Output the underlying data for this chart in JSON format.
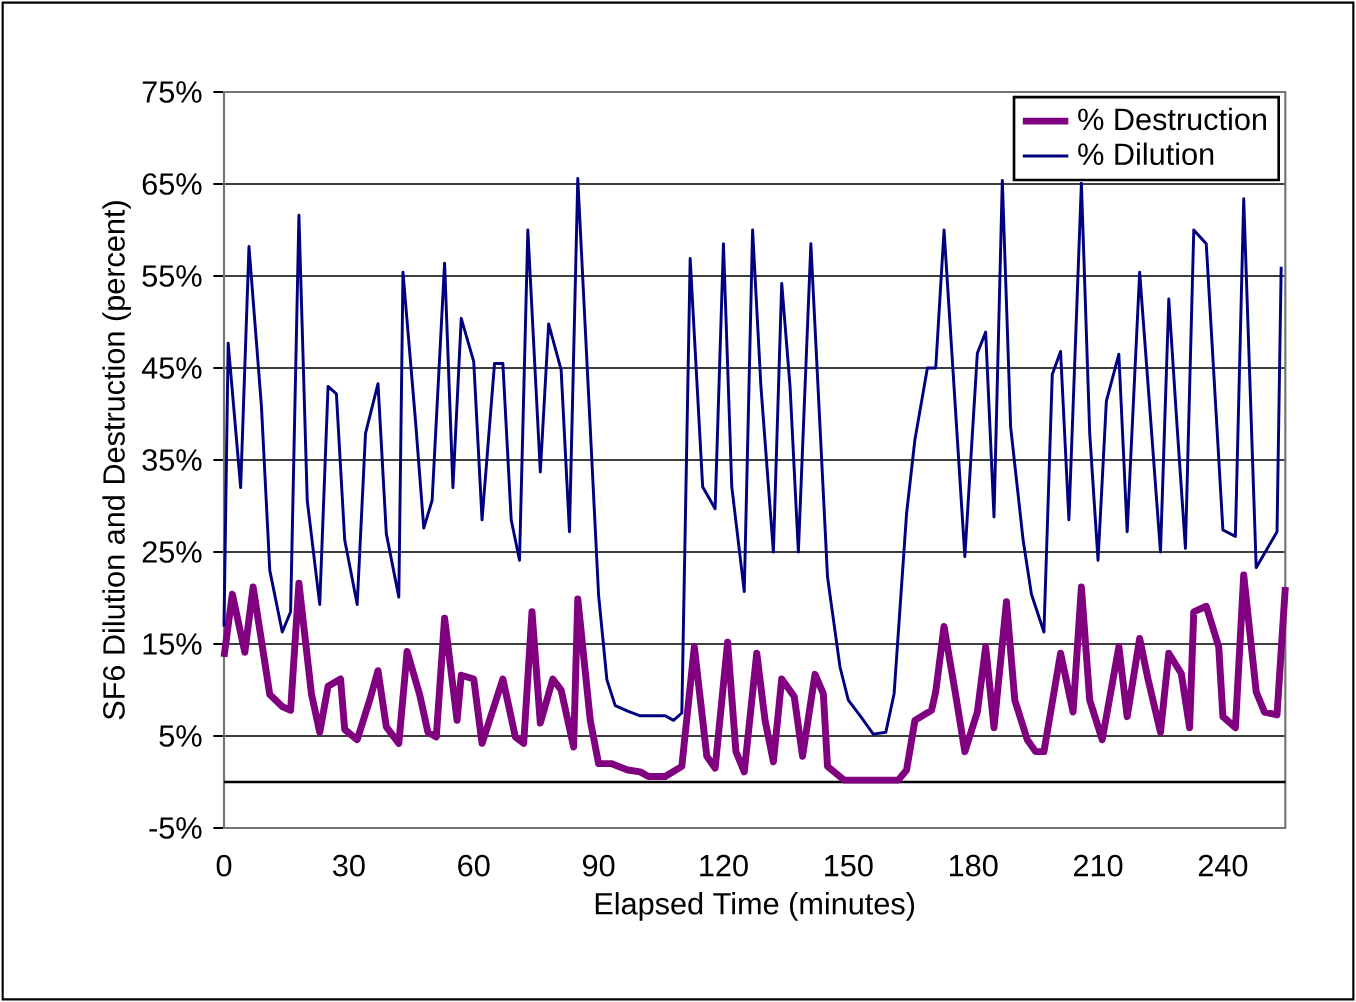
{
  "chart_data": {
    "type": "line",
    "xlabel": "Elapsed Time (minutes)",
    "ylabel": "SF6 Dilution and Destruction (percent)",
    "xlim": [
      0,
      255
    ],
    "xticks": [
      0,
      30,
      60,
      90,
      120,
      150,
      180,
      210,
      240
    ],
    "ylim": [
      -5,
      75
    ],
    "yticks": [
      {
        "value": -5,
        "label": "-5%"
      },
      {
        "value": 5,
        "label": "5%"
      },
      {
        "value": 15,
        "label": "15%"
      },
      {
        "value": 25,
        "label": "25%"
      },
      {
        "value": 35,
        "label": "35%"
      },
      {
        "value": 45,
        "label": "45%"
      },
      {
        "value": 55,
        "label": "55%"
      },
      {
        "value": 65,
        "label": "65%"
      },
      {
        "value": 75,
        "label": "75%"
      }
    ],
    "grid": "y",
    "legend": "top right",
    "marker": "none",
    "line_style": "solid",
    "series": [
      {
        "name": "% Destruction",
        "color": "#800080",
        "x": [
          0,
          2,
          5,
          7,
          11,
          14,
          16,
          18,
          21,
          23,
          25,
          28,
          29,
          32,
          35,
          37,
          39,
          42,
          44,
          47,
          49,
          51,
          53,
          56,
          57,
          60,
          62,
          67,
          70,
          72,
          74,
          76,
          79,
          81,
          84,
          85,
          88,
          90,
          93,
          97,
          100,
          102,
          106,
          110,
          113,
          116,
          118,
          121,
          123,
          125,
          128,
          130,
          132,
          134,
          137,
          139,
          142,
          144,
          145,
          149,
          154,
          162,
          164,
          166,
          170,
          171,
          173,
          176,
          178,
          181,
          183,
          185,
          188,
          190,
          193,
          195,
          197,
          201,
          204,
          206,
          208,
          211,
          215,
          217,
          220,
          222,
          225,
          227,
          230,
          232,
          233,
          236,
          239,
          240,
          243,
          245,
          248,
          250,
          253,
          255
        ],
        "values": [
          13.6,
          20.4,
          14.1,
          21.2,
          9.5,
          8.2,
          7.8,
          21.6,
          9.6,
          5.4,
          10.4,
          11.2,
          5.7,
          4.6,
          8.9,
          12.1,
          6,
          4.2,
          14.2,
          9.5,
          5.4,
          4.9,
          17.8,
          6.7,
          11.6,
          11.2,
          4.2,
          11.2,
          4.9,
          4.2,
          18.5,
          6.4,
          11.2,
          10,
          3.8,
          19.9,
          6.7,
          2,
          2,
          1.3,
          1.1,
          0.6,
          0.6,
          1.7,
          14.7,
          2.8,
          1.5,
          15.2,
          3.3,
          1.1,
          14,
          6.7,
          2.2,
          11.2,
          9.3,
          2.8,
          11.7,
          9.6,
          1.7,
          0.2,
          0.2,
          0.2,
          1.3,
          6.7,
          7.8,
          9.8,
          16.9,
          8.9,
          3.3,
          7.6,
          14.7,
          5.9,
          19.6,
          8.9,
          4.6,
          3.3,
          3.3,
          14,
          7.6,
          21.2,
          8.9,
          4.6,
          14.7,
          7.1,
          15.6,
          11.2,
          5.4,
          14,
          11.8,
          5.9,
          18.5,
          19.1,
          14.7,
          7.1,
          5.9,
          22.5,
          9.8,
          7.6,
          7.3,
          21.2
        ]
      },
      {
        "name": "% Dilution",
        "color": "#000080",
        "x": [
          0,
          1,
          4,
          6,
          9,
          11,
          14,
          16,
          18,
          20,
          23,
          25,
          27,
          29,
          32,
          34,
          37,
          39,
          42,
          43,
          46,
          48,
          50,
          53,
          55,
          57,
          60,
          62,
          65,
          67,
          69,
          71,
          73,
          76,
          78,
          81,
          83,
          85,
          90,
          92,
          94,
          97,
          100,
          106,
          108,
          110,
          112,
          115,
          118,
          120,
          122,
          125,
          127,
          129,
          132,
          134,
          136,
          138,
          141,
          145,
          148,
          150,
          153,
          156,
          159,
          161,
          164,
          166,
          169,
          171,
          173,
          178,
          181,
          183,
          185,
          187,
          189,
          192,
          194,
          197,
          199,
          201,
          203,
          206,
          208,
          210,
          212,
          215,
          217,
          220,
          222,
          225,
          227,
          229,
          231,
          233,
          236,
          240,
          243,
          245,
          248,
          253,
          254
        ],
        "values": [
          16.9,
          47.7,
          32,
          58.2,
          40.8,
          23,
          16.3,
          18.5,
          61.6,
          30.6,
          19.3,
          43,
          42.2,
          26.3,
          19.3,
          37.9,
          43.3,
          27,
          20.1,
          55.4,
          39.3,
          27.6,
          30.6,
          56.4,
          32,
          50.4,
          45.7,
          28.5,
          45.5,
          45.5,
          28.5,
          24.1,
          60,
          33.7,
          49.8,
          44.8,
          27.2,
          65.6,
          20.3,
          11.1,
          8.3,
          7.7,
          7.2,
          7.2,
          6.7,
          7.5,
          56.9,
          32.1,
          29.7,
          58.5,
          32.1,
          20.7,
          60,
          43,
          25,
          54.2,
          43,
          25,
          58.5,
          22.3,
          12.5,
          8.9,
          7.1,
          5.2,
          5.4,
          9.6,
          29.2,
          37.2,
          45,
          45,
          60,
          24.5,
          46.6,
          48.9,
          28.8,
          65.4,
          38.6,
          26.3,
          20.4,
          16.3,
          44.3,
          46.8,
          28.5,
          65.1,
          37.9,
          24.1,
          41.4,
          46.5,
          27.2,
          55.4,
          43.3,
          25,
          52.5,
          38.6,
          25.4,
          60,
          58.5,
          27.4,
          26.7,
          63.4,
          23.3,
          27.2,
          56
        ]
      }
    ]
  }
}
